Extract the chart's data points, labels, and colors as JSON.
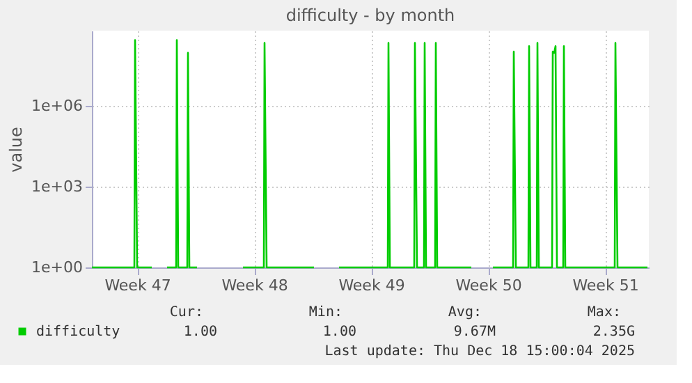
{
  "chart_data": {
    "type": "line",
    "title": "difficulty - by month",
    "ylabel": "value",
    "log": "y",
    "grid": true,
    "legend": "bottom",
    "line_style": "solid",
    "marker": "none",
    "x": [
      "2025-11-15T07:00",
      "2025-11-17T20:00",
      "2025-11-17T21:00",
      "2025-11-18T00:00",
      "2025-11-18T21:00",
      "2025-11-19T08:00",
      "2025-11-19T19:00",
      "2025-11-20T08:00",
      "2025-11-20T09:00",
      "2025-11-20T11:00",
      "2025-11-21T00:00",
      "2025-11-21T01:00",
      "2025-11-21T03:00",
      "2025-11-21T14:00",
      "2025-11-22T23:00",
      "2025-11-24T08:00",
      "2025-11-25T14:00",
      "2025-11-25T15:00",
      "2025-11-25T18:00",
      "2025-11-28T14:00",
      "2025-11-29T08:00",
      "2025-11-30T02:00",
      "2025-12-03T00:00",
      "2025-12-03T01:00",
      "2025-12-03T03:00",
      "2025-12-04T14:00",
      "2025-12-04T15:00",
      "2025-12-04T18:00",
      "2025-12-05T04:00",
      "2025-12-05T05:00",
      "2025-12-05T07:00",
      "2025-12-05T20:00",
      "2025-12-05T21:00",
      "2025-12-05T23:00",
      "2025-12-08T00:00",
      "2025-12-08T15:00",
      "2025-12-09T07:00",
      "2025-12-10T12:00",
      "2025-12-10T13:00",
      "2025-12-10T16:00",
      "2025-12-11T10:00",
      "2025-12-11T11:00",
      "2025-12-11T13:00",
      "2025-12-11T22:00",
      "2025-12-11T23:00",
      "2025-12-12T01:00",
      "2025-12-12T20:00",
      "2025-12-12T21:00",
      "2025-12-12T23:00",
      "2025-12-13T01:00",
      "2025-12-13T03:00",
      "2025-12-13T12:00",
      "2025-12-13T13:00",
      "2025-12-13T15:00",
      "2025-12-16T14:00",
      "2025-12-16T15:00",
      "2025-12-16T18:00",
      "2025-12-18T13:00"
    ],
    "series": [
      {
        "name": "difficulty",
        "color": "#00cc00",
        "values": [
          1,
          1,
          270000000,
          1,
          1,
          null,
          1,
          1,
          270000000,
          1,
          1,
          90000000,
          1,
          1,
          null,
          1,
          1,
          210000000,
          1,
          1,
          null,
          1,
          1,
          210000000,
          1,
          1,
          210000000,
          1,
          1,
          210000000,
          1,
          1,
          210000000,
          1,
          1,
          null,
          1,
          1,
          100000000,
          1,
          1,
          160000000,
          1,
          1,
          210000000,
          1,
          1,
          100000000,
          90000000,
          160000000,
          1,
          1,
          160000000,
          1,
          1,
          210000000,
          1,
          1
        ]
      }
    ],
    "xlim": [
      "2025-11-15T07:00",
      "2025-12-18T15:00"
    ],
    "xticks": [
      {
        "value": "2025-11-18T00:00",
        "label": "Week 47"
      },
      {
        "value": "2025-11-25T00:00",
        "label": "Week 48"
      },
      {
        "value": "2025-12-02T00:00",
        "label": "Week 49"
      },
      {
        "value": "2025-12-09T00:00",
        "label": "Week 50"
      },
      {
        "value": "2025-12-16T00:00",
        "label": "Week 51"
      }
    ],
    "ylim": [
      1,
      600000000
    ],
    "yticks": [
      {
        "value": 1,
        "label": "1e+00"
      },
      {
        "value": 1000,
        "label": "1e+03"
      },
      {
        "value": 1000000,
        "label": "1e+06"
      }
    ],
    "annotations": [
      "Cur:",
      "Min:",
      "Avg:",
      "Max:",
      "1.00",
      "1.00",
      "9.67M",
      "2.35G",
      "Last update: Thu Dec 18 15:00:04 2025"
    ]
  }
}
